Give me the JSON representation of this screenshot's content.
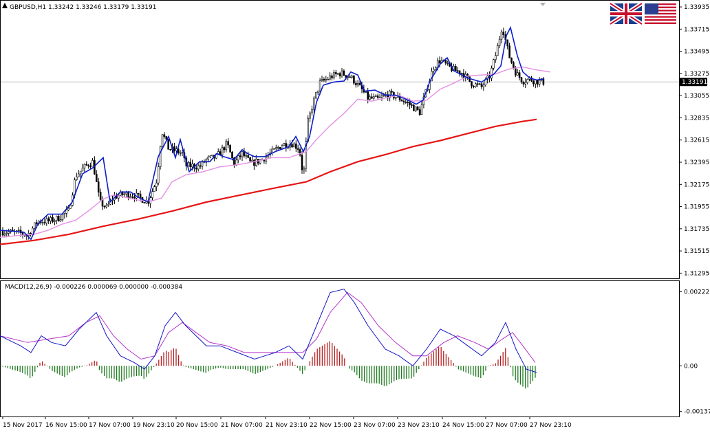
{
  "chart_data": [
    {
      "type": "candlestick",
      "symbol": "GBPUSD,H1",
      "ohlc_header": [
        "1.33242",
        "1.33246",
        "1.33179",
        "1.33191"
      ],
      "current_price": "1.33191",
      "y_ticks": [
        "1.33935",
        "1.33715",
        "1.33495",
        "1.33275",
        "1.33055",
        "1.32835",
        "1.32615",
        "1.32395",
        "1.32175",
        "1.31955",
        "1.31735",
        "1.31515",
        "1.31295"
      ],
      "ylim": [
        1.3125,
        1.3399
      ],
      "x_ticks": [
        "15 Nov 2017",
        "16 Nov 15:00",
        "17 Nov 07:00",
        "19 Nov 23:10",
        "20 Nov 15:00",
        "21 Nov 07:00",
        "21 Nov 23:10",
        "22 Nov 15:00",
        "23 Nov 07:00",
        "23 Nov 23:10",
        "24 Nov 15:00",
        "27 Nov 07:00",
        "27 Nov 23:10"
      ],
      "colors": {
        "candles": "#000000",
        "ma_fast": "#0a1ec8",
        "ma_mid": "#e696e6",
        "ma_slow": "#e61414",
        "price_line": "#c0c0c0"
      },
      "close_path": [
        [
          0,
          1.3171
        ],
        [
          30,
          1.3169
        ],
        [
          40,
          1.3167
        ],
        [
          55,
          1.3181
        ],
        [
          70,
          1.3181
        ],
        [
          85,
          1.3184
        ],
        [
          100,
          1.3191
        ],
        [
          110,
          1.3226
        ],
        [
          125,
          1.3236
        ],
        [
          135,
          1.324
        ],
        [
          145,
          1.32
        ],
        [
          155,
          1.3194
        ],
        [
          165,
          1.3205
        ],
        [
          180,
          1.3208
        ],
        [
          195,
          1.3207
        ],
        [
          215,
          1.32
        ],
        [
          228,
          1.3222
        ],
        [
          235,
          1.3271
        ],
        [
          245,
          1.3253
        ],
        [
          255,
          1.3251
        ],
        [
          265,
          1.3248
        ],
        [
          270,
          1.3236
        ],
        [
          280,
          1.3236
        ],
        [
          290,
          1.3235
        ],
        [
          300,
          1.3242
        ],
        [
          315,
          1.3245
        ],
        [
          330,
          1.3258
        ],
        [
          340,
          1.3238
        ],
        [
          352,
          1.3248
        ],
        [
          365,
          1.3238
        ],
        [
          380,
          1.3242
        ],
        [
          395,
          1.3249
        ],
        [
          410,
          1.3257
        ],
        [
          425,
          1.3258
        ],
        [
          435,
          1.3253
        ],
        [
          441,
          1.3224
        ],
        [
          447,
          1.3278
        ],
        [
          455,
          1.3298
        ],
        [
          465,
          1.3318
        ],
        [
          480,
          1.3324
        ],
        [
          495,
          1.3328
        ],
        [
          510,
          1.3324
        ],
        [
          525,
          1.3312
        ],
        [
          535,
          1.3303
        ],
        [
          550,
          1.3302
        ],
        [
          565,
          1.3307
        ],
        [
          580,
          1.3303
        ],
        [
          595,
          1.3297
        ],
        [
          610,
          1.3289
        ],
        [
          620,
          1.3311
        ],
        [
          630,
          1.3334
        ],
        [
          640,
          1.3341
        ],
        [
          650,
          1.3335
        ],
        [
          660,
          1.3331
        ],
        [
          670,
          1.3329
        ],
        [
          685,
          1.3318
        ],
        [
          700,
          1.3314
        ],
        [
          712,
          1.3325
        ],
        [
          722,
          1.335
        ],
        [
          730,
          1.3375
        ],
        [
          740,
          1.3345
        ],
        [
          750,
          1.3328
        ],
        [
          760,
          1.332
        ],
        [
          770,
          1.3322
        ],
        [
          778,
          1.332
        ],
        [
          790,
          1.3319
        ]
      ],
      "ma_fast": [
        [
          0,
          1.3172
        ],
        [
          20,
          1.3171
        ],
        [
          35,
          1.317
        ],
        [
          45,
          1.3163
        ],
        [
          55,
          1.3178
        ],
        [
          70,
          1.3188
        ],
        [
          90,
          1.3188
        ],
        [
          105,
          1.32
        ],
        [
          120,
          1.3228
        ],
        [
          135,
          1.3234
        ],
        [
          150,
          1.3244
        ],
        [
          160,
          1.32
        ],
        [
          175,
          1.321
        ],
        [
          190,
          1.321
        ],
        [
          200,
          1.3205
        ],
        [
          215,
          1.32
        ],
        [
          230,
          1.3245
        ],
        [
          245,
          1.3265
        ],
        [
          255,
          1.3244
        ],
        [
          262,
          1.3262
        ],
        [
          275,
          1.323
        ],
        [
          290,
          1.324
        ],
        [
          305,
          1.324
        ],
        [
          315,
          1.3248
        ],
        [
          325,
          1.3245
        ],
        [
          340,
          1.3242
        ],
        [
          352,
          1.3252
        ],
        [
          360,
          1.3248
        ],
        [
          370,
          1.3245
        ],
        [
          385,
          1.3245
        ],
        [
          400,
          1.325
        ],
        [
          420,
          1.3255
        ],
        [
          430,
          1.3265
        ],
        [
          441,
          1.325
        ],
        [
          450,
          1.3265
        ],
        [
          460,
          1.3299
        ],
        [
          470,
          1.3316
        ],
        [
          485,
          1.3319
        ],
        [
          500,
          1.332
        ],
        [
          510,
          1.3329
        ],
        [
          520,
          1.3326
        ],
        [
          530,
          1.331
        ],
        [
          545,
          1.3311
        ],
        [
          560,
          1.3306
        ],
        [
          575,
          1.3306
        ],
        [
          590,
          1.3302
        ],
        [
          605,
          1.3297
        ],
        [
          615,
          1.3301
        ],
        [
          625,
          1.332
        ],
        [
          640,
          1.3337
        ],
        [
          650,
          1.3343
        ],
        [
          660,
          1.333
        ],
        [
          680,
          1.3323
        ],
        [
          700,
          1.3319
        ],
        [
          718,
          1.3327
        ],
        [
          728,
          1.3335
        ],
        [
          736,
          1.3365
        ],
        [
          742,
          1.3373
        ],
        [
          752,
          1.3345
        ],
        [
          760,
          1.3329
        ],
        [
          770,
          1.3323
        ],
        [
          780,
          1.3321
        ],
        [
          790,
          1.3322
        ]
      ],
      "ma_mid": [
        [
          0,
          1.3165
        ],
        [
          30,
          1.3167
        ],
        [
          50,
          1.3168
        ],
        [
          70,
          1.3172
        ],
        [
          90,
          1.3178
        ],
        [
          110,
          1.3182
        ],
        [
          130,
          1.3192
        ],
        [
          150,
          1.3203
        ],
        [
          165,
          1.3207
        ],
        [
          180,
          1.3205
        ],
        [
          200,
          1.3202
        ],
        [
          220,
          1.3201
        ],
        [
          235,
          1.3204
        ],
        [
          250,
          1.322
        ],
        [
          270,
          1.3227
        ],
        [
          295,
          1.323
        ],
        [
          320,
          1.3235
        ],
        [
          345,
          1.3237
        ],
        [
          370,
          1.324
        ],
        [
          395,
          1.3244
        ],
        [
          420,
          1.3244
        ],
        [
          445,
          1.325
        ],
        [
          460,
          1.3262
        ],
        [
          480,
          1.3276
        ],
        [
          500,
          1.3288
        ],
        [
          520,
          1.3302
        ],
        [
          540,
          1.33
        ],
        [
          560,
          1.3303
        ],
        [
          580,
          1.3306
        ],
        [
          600,
          1.33
        ],
        [
          620,
          1.3301
        ],
        [
          640,
          1.3312
        ],
        [
          660,
          1.3318
        ],
        [
          680,
          1.3325
        ],
        [
          700,
          1.3326
        ],
        [
          720,
          1.3327
        ],
        [
          740,
          1.3332
        ],
        [
          760,
          1.3334
        ],
        [
          780,
          1.3331
        ],
        [
          800,
          1.3329
        ]
      ],
      "ma_slow": [
        [
          0,
          1.3158
        ],
        [
          50,
          1.3162
        ],
        [
          100,
          1.3168
        ],
        [
          150,
          1.3176
        ],
        [
          200,
          1.3183
        ],
        [
          250,
          1.3191
        ],
        [
          300,
          1.32
        ],
        [
          350,
          1.3207
        ],
        [
          400,
          1.3214
        ],
        [
          445,
          1.322
        ],
        [
          480,
          1.323
        ],
        [
          520,
          1.324
        ],
        [
          560,
          1.3247
        ],
        [
          600,
          1.3255
        ],
        [
          640,
          1.3261
        ],
        [
          680,
          1.3268
        ],
        [
          720,
          1.3275
        ],
        [
          760,
          1.328
        ],
        [
          780,
          1.3282
        ]
      ]
    },
    {
      "type": "line",
      "indicator": "MACD",
      "label": "MACD(12,26,9) -0.000226 0.000069 0.000000 -0.000384",
      "y_ticks": [
        "0.002225",
        "0.00",
        "-0.00137"
      ],
      "ylim": [
        -0.0015,
        0.0025
      ],
      "macd_line": [
        [
          0,
          0.0009
        ],
        [
          30,
          0.0006
        ],
        [
          45,
          0.0004
        ],
        [
          60,
          0.0009
        ],
        [
          75,
          0.0007
        ],
        [
          95,
          0.0006
        ],
        [
          115,
          0.0011
        ],
        [
          140,
          0.0016
        ],
        [
          155,
          0.0009
        ],
        [
          175,
          0.0003
        ],
        [
          195,
          0.0001
        ],
        [
          210,
          -0.0001
        ],
        [
          225,
          0.0003
        ],
        [
          240,
          0.0012
        ],
        [
          255,
          0.0016
        ],
        [
          270,
          0.0012
        ],
        [
          285,
          0.0009
        ],
        [
          300,
          0.0006
        ],
        [
          320,
          0.0006
        ],
        [
          345,
          0.0004
        ],
        [
          370,
          0.0002
        ],
        [
          400,
          0.0004
        ],
        [
          420,
          0.0006
        ],
        [
          440,
          0.0002
        ],
        [
          460,
          0.0012
        ],
        [
          480,
          0.0022
        ],
        [
          500,
          0.0023
        ],
        [
          515,
          0.0019
        ],
        [
          535,
          0.0012
        ],
        [
          560,
          0.0005
        ],
        [
          580,
          0.0003
        ],
        [
          600,
          0.0
        ],
        [
          620,
          0.0005
        ],
        [
          640,
          0.0011
        ],
        [
          660,
          0.0009
        ],
        [
          680,
          0.0006
        ],
        [
          700,
          0.0003
        ],
        [
          720,
          0.0007
        ],
        [
          735,
          0.0013
        ],
        [
          750,
          0.0005
        ],
        [
          765,
          -0.0001
        ],
        [
          780,
          -0.0002
        ]
      ],
      "signal_line": [
        [
          0,
          0.0009
        ],
        [
          40,
          0.0007
        ],
        [
          70,
          0.0008
        ],
        [
          100,
          0.0009
        ],
        [
          125,
          0.0013
        ],
        [
          145,
          0.0015
        ],
        [
          165,
          0.0009
        ],
        [
          185,
          0.0005
        ],
        [
          205,
          0.0002
        ],
        [
          225,
          0.0003
        ],
        [
          245,
          0.001
        ],
        [
          265,
          0.0013
        ],
        [
          285,
          0.001
        ],
        [
          305,
          0.0007
        ],
        [
          330,
          0.0006
        ],
        [
          355,
          0.0004
        ],
        [
          385,
          0.0004
        ],
        [
          415,
          0.0004
        ],
        [
          440,
          0.0004
        ],
        [
          460,
          0.0008
        ],
        [
          480,
          0.0016
        ],
        [
          505,
          0.0022
        ],
        [
          525,
          0.0019
        ],
        [
          550,
          0.0012
        ],
        [
          575,
          0.0007
        ],
        [
          600,
          0.0003
        ],
        [
          620,
          0.0003
        ],
        [
          645,
          0.0007
        ],
        [
          665,
          0.0009
        ],
        [
          690,
          0.0007
        ],
        [
          710,
          0.0005
        ],
        [
          730,
          0.0008
        ],
        [
          745,
          0.001
        ],
        [
          760,
          0.0006
        ],
        [
          778,
          0.0001
        ]
      ],
      "colors": {
        "macd": "#1414c8",
        "signal": "#b432c8",
        "hist_up": "#b41e1e",
        "hist_down": "#1e781e"
      }
    }
  ]
}
